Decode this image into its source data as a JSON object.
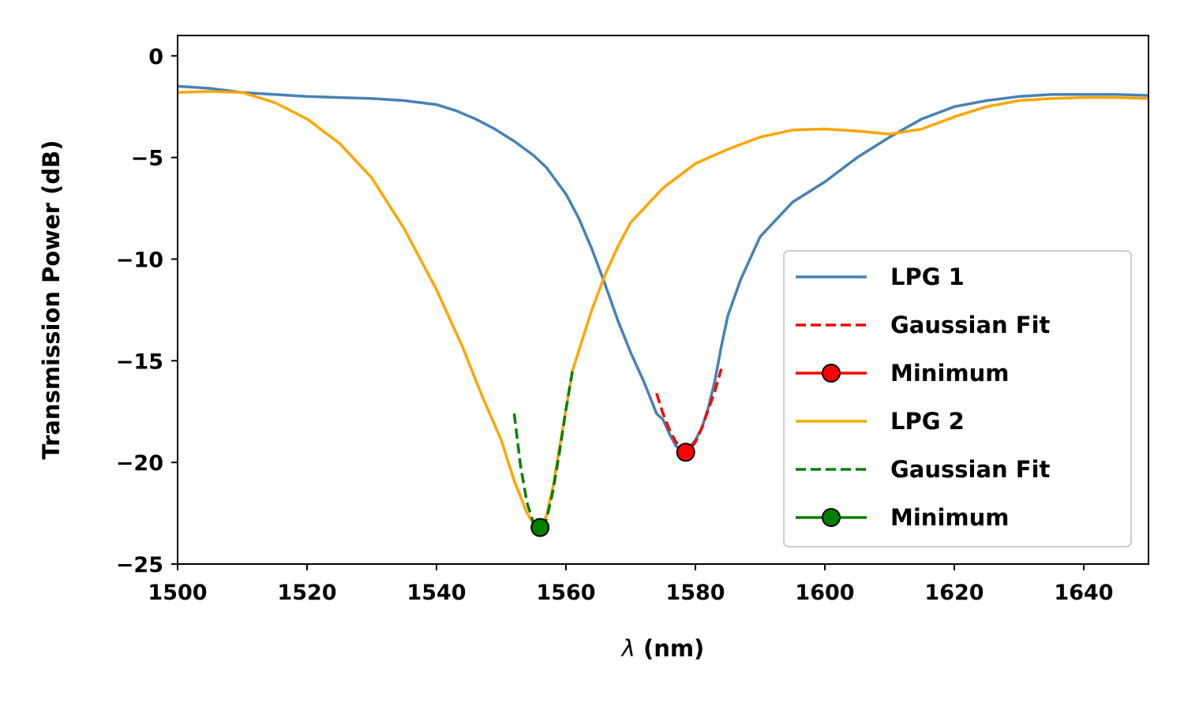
{
  "chart_data": {
    "type": "line",
    "xlabel_symbol": "λ",
    "xlabel_unit": " (nm)",
    "ylabel": "Transmission Power (dB)",
    "xlim": [
      1500,
      1650
    ],
    "ylim": [
      -25,
      1
    ],
    "xticks": [
      1500,
      1520,
      1540,
      1560,
      1580,
      1600,
      1620,
      1640
    ],
    "yticks": [
      0,
      -5,
      -10,
      -15,
      -20,
      -25
    ],
    "ytick_labels": [
      "0",
      "−5",
      "−10",
      "−15",
      "−20",
      "−25"
    ],
    "grid": false,
    "legend_position": "lower-right",
    "series": [
      {
        "name": "LPG 1",
        "kind": "line",
        "color": "#4682b4",
        "x": [
          1500,
          1505,
          1510,
          1515,
          1520,
          1525,
          1530,
          1535,
          1540,
          1543,
          1546,
          1549,
          1552,
          1555,
          1557,
          1560,
          1562,
          1564,
          1566,
          1568,
          1570,
          1572,
          1573,
          1574,
          1575,
          1576,
          1577,
          1578,
          1579,
          1580,
          1581,
          1582,
          1583,
          1584,
          1585,
          1587,
          1590,
          1595,
          1600,
          1605,
          1610,
          1615,
          1620,
          1625,
          1630,
          1635,
          1640,
          1645,
          1650
        ],
        "y": [
          -1.5,
          -1.6,
          -1.8,
          -1.9,
          -2.0,
          -2.05,
          -2.1,
          -2.2,
          -2.4,
          -2.7,
          -3.1,
          -3.6,
          -4.2,
          -4.9,
          -5.5,
          -6.8,
          -8.0,
          -9.5,
          -11.2,
          -13.0,
          -14.6,
          -16.0,
          -16.8,
          -17.6,
          -17.9,
          -18.6,
          -19.2,
          -19.4,
          -19.3,
          -18.9,
          -18.3,
          -17.3,
          -16.0,
          -14.3,
          -12.8,
          -11.0,
          -8.9,
          -7.2,
          -6.2,
          -5.0,
          -4.0,
          -3.1,
          -2.5,
          -2.2,
          -2.0,
          -1.9,
          -1.9,
          -1.9,
          -1.95
        ]
      },
      {
        "name": "Gaussian Fit",
        "kind": "dashed",
        "color": "#ff0000",
        "x": [
          1574,
          1575,
          1576,
          1577,
          1578,
          1578.5,
          1579,
          1580,
          1581,
          1582,
          1583,
          1584
        ],
        "y": [
          -16.6,
          -17.6,
          -18.4,
          -19.0,
          -19.4,
          -19.5,
          -19.4,
          -19.0,
          -18.3,
          -17.4,
          -16.5,
          -15.4
        ]
      },
      {
        "name": "Minimum",
        "kind": "marker",
        "color": "#ff0000",
        "x": [
          1578.5
        ],
        "y": [
          -19.5
        ]
      },
      {
        "name": "LPG 2",
        "kind": "line",
        "color": "#ffa500",
        "x": [
          1500,
          1505,
          1510,
          1515,
          1520,
          1525,
          1530,
          1535,
          1540,
          1544,
          1547,
          1550,
          1552,
          1554,
          1555,
          1556,
          1557,
          1558,
          1559,
          1560,
          1561,
          1562,
          1564,
          1566,
          1568,
          1570,
          1575,
          1580,
          1585,
          1590,
          1595,
          1600,
          1605,
          1610,
          1615,
          1620,
          1625,
          1630,
          1635,
          1640,
          1645,
          1650
        ],
        "y": [
          -1.8,
          -1.75,
          -1.8,
          -2.3,
          -3.1,
          -4.3,
          -6.0,
          -8.5,
          -11.5,
          -14.3,
          -16.7,
          -18.9,
          -20.9,
          -22.5,
          -23.0,
          -23.3,
          -22.6,
          -21.2,
          -19.3,
          -17.4,
          -15.5,
          -14.5,
          -12.5,
          -10.8,
          -9.4,
          -8.2,
          -6.5,
          -5.3,
          -4.6,
          -4.0,
          -3.65,
          -3.6,
          -3.7,
          -3.85,
          -3.6,
          -3.0,
          -2.5,
          -2.2,
          -2.1,
          -2.05,
          -2.05,
          -2.1
        ]
      },
      {
        "name": "Gaussian Fit",
        "kind": "dashed",
        "color": "#008000",
        "x": [
          1552,
          1553,
          1554,
          1555,
          1556,
          1557,
          1558,
          1559,
          1560,
          1561
        ],
        "y": [
          -17.6,
          -20.2,
          -22.0,
          -23.0,
          -23.2,
          -22.8,
          -21.4,
          -19.5,
          -17.4,
          -15.5
        ]
      },
      {
        "name": "Minimum",
        "kind": "marker",
        "color": "#008000",
        "x": [
          1556
        ],
        "y": [
          -23.2
        ]
      }
    ]
  }
}
